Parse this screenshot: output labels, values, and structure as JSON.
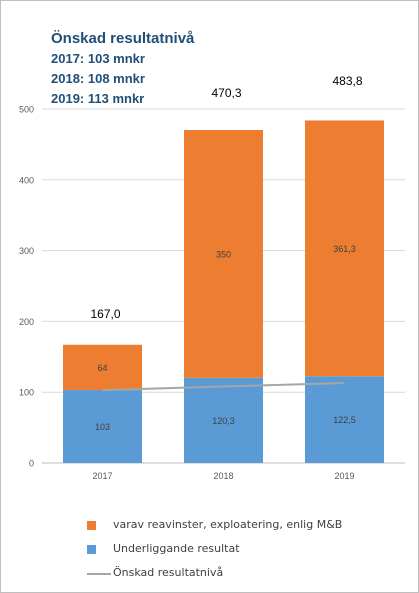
{
  "header": {
    "title": "Önskad resultatnivå",
    "lines": [
      "2017: 103 mnkr",
      "2018: 108 mnkr",
      "2019: 113 mnkr"
    ]
  },
  "chart_data": {
    "type": "bar",
    "stacked": true,
    "categories": [
      "2017",
      "2018",
      "2019"
    ],
    "ylim": [
      0,
      500
    ],
    "yticks": [
      0,
      100,
      200,
      300,
      400,
      500
    ],
    "grid": true,
    "series": [
      {
        "name": "Underliggande resultat",
        "color": "#5b9bd5",
        "values": [
          103,
          120.3,
          122.5
        ],
        "labels": [
          "103",
          "120,3",
          "122,5"
        ]
      },
      {
        "name": "varav reavinster, exploatering, enlig M&B",
        "color": "#ed7d31",
        "values": [
          64,
          350,
          361.3
        ],
        "labels": [
          "64",
          "350",
          "361,3"
        ]
      }
    ],
    "line_series": {
      "name": "Önskad resultatnivå",
      "color": "#a6a6a6",
      "values": [
        103,
        108,
        113
      ]
    },
    "totals": [
      "167,0",
      "470,3",
      "483,8"
    ],
    "legend_position": "bottom"
  }
}
